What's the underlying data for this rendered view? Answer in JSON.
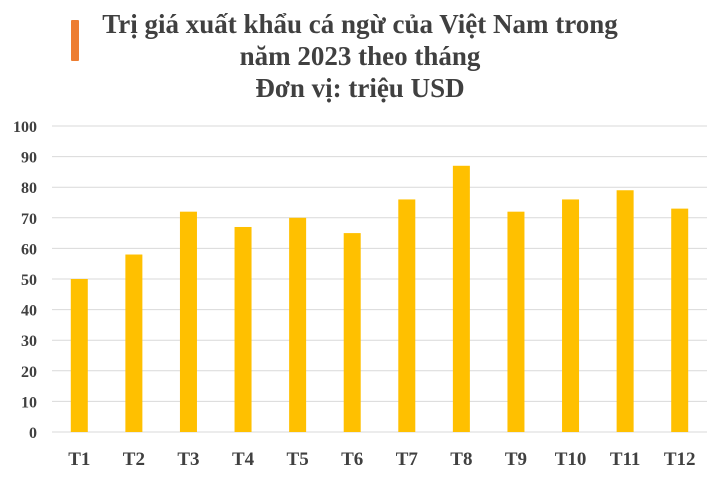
{
  "title": {
    "line1": "Trị giá xuất khẩu cá ngừ của Việt Nam trong",
    "line2": "năm 2023 theo tháng",
    "line3": "Đơn vị: triệu USD"
  },
  "colors": {
    "bar": "#FFC000",
    "accent": "#ED7D31",
    "grid": "#D9D9D9",
    "text": "#404040"
  },
  "chart_data": {
    "type": "bar",
    "title": "Trị giá xuất khẩu cá ngừ của Việt Nam trong năm 2023 theo tháng",
    "subtitle": "Đơn vị: triệu USD",
    "categories": [
      "T1",
      "T2",
      "T3",
      "T4",
      "T5",
      "T6",
      "T7",
      "T8",
      "T9",
      "T10",
      "T11",
      "T12"
    ],
    "values": [
      50,
      58,
      72,
      67,
      70,
      65,
      76,
      87,
      72,
      76,
      79,
      73
    ],
    "ylim": [
      0,
      100
    ],
    "yticks": [
      0,
      10,
      20,
      30,
      40,
      50,
      60,
      70,
      80,
      90,
      100
    ],
    "grid": true,
    "legend": "none"
  }
}
